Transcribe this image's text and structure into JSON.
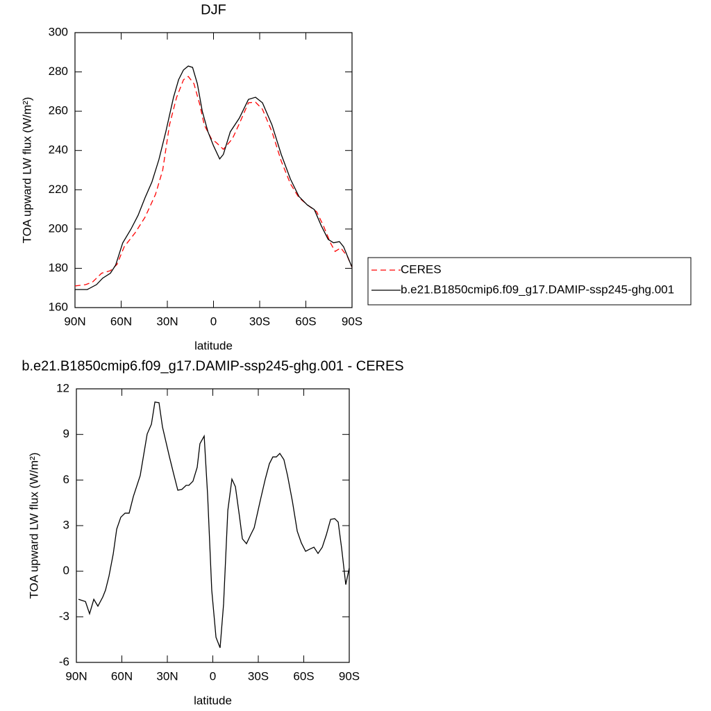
{
  "chart_data": [
    {
      "type": "line",
      "title": "DJF",
      "x_label": "latitude",
      "y_label": "TOA upward LW flux (W/m²)",
      "xlim": [
        90,
        -90
      ],
      "xticks": [
        {
          "value": 90,
          "label": "90N"
        },
        {
          "value": 60,
          "label": "60N"
        },
        {
          "value": 30,
          "label": "30N"
        },
        0,
        {
          "value": -30,
          "label": "30S"
        },
        {
          "value": -60,
          "label": "60S"
        },
        {
          "value": -90,
          "label": "90S"
        }
      ],
      "ylim": [
        160,
        300
      ],
      "yticks": [
        160,
        180,
        200,
        220,
        240,
        260,
        280,
        300
      ],
      "legend": "right",
      "series": [
        {
          "name": "CERES",
          "color": "#ff0000",
          "dash": "dashed",
          "x": [
            90,
            83,
            78.6,
            72.7,
            67,
            62.7,
            58,
            51,
            44.5,
            37.7,
            33,
            28.6,
            24,
            19.5,
            16.4,
            12.7,
            9,
            6,
            1.4,
            -1.8,
            -6.4,
            -12.3,
            -16.8,
            -22.7,
            -27.3,
            -31.8,
            -38,
            -44,
            -50,
            -55.5,
            -61,
            -67,
            -71.4,
            -76,
            -79,
            -82.7,
            -87,
            -90
          ],
          "values": [
            171,
            171.7,
            173,
            177.5,
            178.8,
            182,
            191,
            198,
            206,
            217.6,
            230,
            253,
            267,
            276,
            277.7,
            274,
            263.6,
            253,
            246,
            244,
            240.6,
            246,
            253.7,
            264.3,
            264.6,
            261,
            249.5,
            234.6,
            223,
            216,
            212.3,
            208.8,
            201.7,
            192.9,
            188.6,
            190.4,
            186,
            180.5
          ]
        },
        {
          "name": "b.e21.B1850cmip6.f09_g17.DAMIP-ssp245-ghg.001",
          "color": "#000000",
          "dash": "solid",
          "x": [
            90,
            82,
            76,
            72,
            67,
            63.6,
            59,
            53.6,
            49,
            44.5,
            40,
            35.5,
            31,
            26,
            22.7,
            19.5,
            16.4,
            13.6,
            10.5,
            7.3,
            3.6,
            0,
            -4,
            -6.4,
            -10.9,
            -16.8,
            -22.7,
            -27.3,
            -31.8,
            -38,
            -44,
            -50,
            -55.5,
            -60.9,
            -65.5,
            -70,
            -74.5,
            -78,
            -81.8,
            -84.5,
            -90
          ],
          "values": [
            169.2,
            169.2,
            171.7,
            175,
            177.5,
            181.6,
            192.9,
            200,
            207,
            215.9,
            224,
            235.3,
            249.5,
            267,
            276,
            281,
            283,
            282.3,
            274,
            260,
            249.5,
            242.4,
            235.7,
            238,
            249.5,
            256.5,
            266,
            267.1,
            264.3,
            253,
            238,
            225.4,
            216.6,
            212.3,
            209.9,
            201.7,
            194.7,
            193,
            193.6,
            191,
            180.5
          ]
        }
      ]
    },
    {
      "type": "line",
      "title": "b.e21.B1850cmip6.f09_g17.DAMIP-ssp245-ghg.001 - CERES",
      "x_label": "latitude",
      "y_label": "TOA upward LW flux (W/m²)",
      "xlim": [
        90,
        -90
      ],
      "xticks": [
        {
          "value": 90,
          "label": "90N"
        },
        {
          "value": 60,
          "label": "60N"
        },
        {
          "value": 30,
          "label": "30N"
        },
        0,
        {
          "value": -30,
          "label": "30S"
        },
        {
          "value": -60,
          "label": "60S"
        },
        {
          "value": -90,
          "label": "90S"
        }
      ],
      "ylim": [
        -6,
        12
      ],
      "yticks": [
        -6,
        -3,
        0,
        3,
        6,
        9,
        12
      ],
      "color": "#000000",
      "x": [
        88.6,
        84,
        81.3,
        78.5,
        75.8,
        72.6,
        70.8,
        68.5,
        65.7,
        63.4,
        60.7,
        57.9,
        55.2,
        52.4,
        47.9,
        45.6,
        43.3,
        40.5,
        38.2,
        35.5,
        33.2,
        28.6,
        25.9,
        23.1,
        20.4,
        17.6,
        15.8,
        13.1,
        10.3,
        8.5,
        5.7,
        3.4,
        0.7,
        -2.1,
        -4.8,
        -7.1,
        -9.9,
        -12.6,
        -14.9,
        -17.6,
        -19.5,
        -22.2,
        -25,
        -27.3,
        -31.4,
        -34.6,
        -37.3,
        -39.6,
        -41.9,
        -44.2,
        -46.9,
        -49.3,
        -52.5,
        -55.7,
        -58.4,
        -61.2,
        -63.9,
        -66.7,
        -69.4,
        -72.2,
        -74.9,
        -77.7,
        -80.4,
        -82.7,
        -85,
        -87.7,
        -90
      ],
      "values": [
        -1.85,
        -2,
        -2.8,
        -1.85,
        -2.3,
        -1.7,
        -1.25,
        -0.33,
        1.13,
        2.77,
        3.55,
        3.82,
        3.82,
        4.92,
        6.29,
        7.66,
        9.03,
        9.67,
        11.13,
        11.09,
        9.49,
        7.52,
        6.43,
        5.33,
        5.38,
        5.65,
        5.65,
        5.92,
        6.84,
        8.39,
        8.89,
        4.96,
        -1.25,
        -4.35,
        -5.04,
        -2.16,
        4,
        6.06,
        5.56,
        3.6,
        2.13,
        1.81,
        2.4,
        2.86,
        4.69,
        6.06,
        7.07,
        7.52,
        7.52,
        7.75,
        7.34,
        6.29,
        4.6,
        2.63,
        1.86,
        1.31,
        1.45,
        1.58,
        1.17,
        1.58,
        2.4,
        3.41,
        3.46,
        3.23,
        1.49,
        -0.88,
        0.21
      ]
    }
  ]
}
